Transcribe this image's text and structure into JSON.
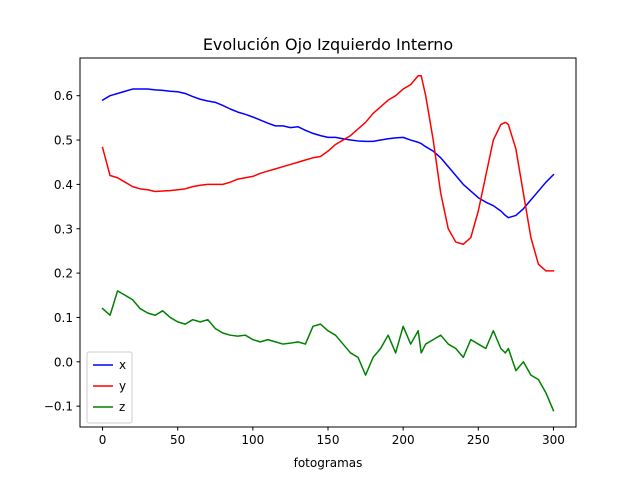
{
  "chart_data": {
    "type": "line",
    "title": "Evolución Ojo Izquierdo Interno",
    "xlabel": "fotogramas",
    "ylabel": "",
    "xlim": [
      -15,
      315
    ],
    "ylim": [
      -0.147,
      0.685
    ],
    "xticks": [
      0,
      50,
      100,
      150,
      200,
      250,
      300
    ],
    "yticks": [
      -0.1,
      0.0,
      0.1,
      0.2,
      0.3,
      0.4,
      0.5,
      0.6
    ],
    "ytick_labels": [
      "−0.1",
      "0.0",
      "0.1",
      "0.2",
      "0.3",
      "0.4",
      "0.5",
      "0.6"
    ],
    "grid": false,
    "legend_position": "lower-left",
    "x": [
      0,
      5,
      10,
      15,
      20,
      25,
      30,
      35,
      40,
      45,
      50,
      55,
      60,
      65,
      70,
      75,
      80,
      85,
      90,
      95,
      100,
      105,
      110,
      115,
      120,
      125,
      130,
      135,
      140,
      145,
      150,
      155,
      160,
      165,
      170,
      175,
      180,
      185,
      190,
      195,
      200,
      205,
      210,
      212,
      215,
      220,
      225,
      230,
      235,
      240,
      245,
      250,
      255,
      260,
      265,
      268,
      270,
      275,
      280,
      285,
      290,
      295,
      300
    ],
    "series": [
      {
        "name": "x",
        "color": "#0000ff",
        "values": [
          0.59,
          0.6,
          0.605,
          0.61,
          0.615,
          0.615,
          0.615,
          0.613,
          0.612,
          0.61,
          0.609,
          0.605,
          0.598,
          0.592,
          0.588,
          0.585,
          0.578,
          0.57,
          0.563,
          0.558,
          0.552,
          0.545,
          0.538,
          0.532,
          0.532,
          0.528,
          0.53,
          0.522,
          0.515,
          0.51,
          0.506,
          0.506,
          0.503,
          0.5,
          0.498,
          0.497,
          0.497,
          0.5,
          0.503,
          0.505,
          0.506,
          0.5,
          0.495,
          0.492,
          0.485,
          0.475,
          0.46,
          0.44,
          0.42,
          0.4,
          0.385,
          0.37,
          0.36,
          0.352,
          0.34,
          0.33,
          0.325,
          0.33,
          0.345,
          0.365,
          0.385,
          0.405,
          0.422
        ]
      },
      {
        "name": "y",
        "color": "#ff0000",
        "values": [
          0.483,
          0.42,
          0.415,
          0.405,
          0.395,
          0.39,
          0.388,
          0.384,
          0.385,
          0.386,
          0.388,
          0.39,
          0.395,
          0.398,
          0.4,
          0.4,
          0.4,
          0.405,
          0.412,
          0.415,
          0.418,
          0.425,
          0.43,
          0.435,
          0.44,
          0.445,
          0.45,
          0.455,
          0.46,
          0.463,
          0.475,
          0.49,
          0.5,
          0.51,
          0.525,
          0.54,
          0.56,
          0.575,
          0.59,
          0.6,
          0.615,
          0.625,
          0.645,
          0.645,
          0.6,
          0.5,
          0.38,
          0.3,
          0.27,
          0.265,
          0.28,
          0.34,
          0.42,
          0.5,
          0.535,
          0.54,
          0.535,
          0.48,
          0.38,
          0.28,
          0.22,
          0.205,
          0.205
        ]
      },
      {
        "name": "z",
        "color": "#008000",
        "values": [
          0.12,
          0.105,
          0.16,
          0.15,
          0.14,
          0.12,
          0.11,
          0.105,
          0.115,
          0.1,
          0.09,
          0.085,
          0.095,
          0.09,
          0.095,
          0.075,
          0.065,
          0.06,
          0.058,
          0.06,
          0.05,
          0.045,
          0.05,
          0.045,
          0.04,
          0.042,
          0.045,
          0.04,
          0.08,
          0.085,
          0.07,
          0.06,
          0.04,
          0.02,
          0.01,
          -0.03,
          0.01,
          0.03,
          0.06,
          0.02,
          0.08,
          0.04,
          0.07,
          0.02,
          0.04,
          0.05,
          0.06,
          0.04,
          0.03,
          0.01,
          0.05,
          0.04,
          0.03,
          0.07,
          0.03,
          0.02,
          0.03,
          -0.02,
          0.0,
          -0.03,
          -0.04,
          -0.07,
          -0.11
        ]
      }
    ]
  }
}
